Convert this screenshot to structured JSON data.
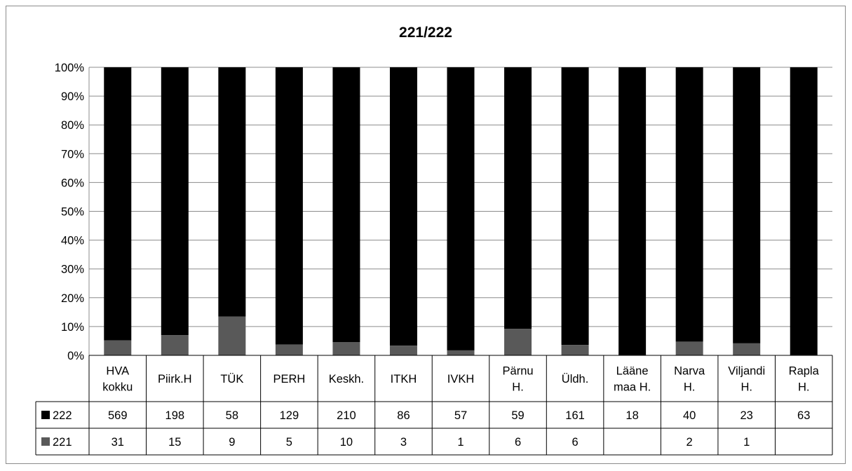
{
  "chart_data": {
    "type": "bar",
    "stacking": "percent",
    "title": "221/222",
    "categories": [
      [
        "HVA",
        "kokku"
      ],
      [
        "Piirk.H"
      ],
      [
        "TÜK"
      ],
      [
        "PERH"
      ],
      [
        "Keskh."
      ],
      [
        "ITKH"
      ],
      [
        "IVKH"
      ],
      [
        "Pärnu",
        "H."
      ],
      [
        "Üldh."
      ],
      [
        "Lääne",
        "maa H."
      ],
      [
        "Narva",
        "H."
      ],
      [
        "Viljandi",
        "H."
      ],
      [
        "Rapla",
        "H."
      ]
    ],
    "series": [
      {
        "name": "222",
        "color": "#000000",
        "values": [
          569,
          198,
          58,
          129,
          210,
          86,
          57,
          59,
          161,
          18,
          40,
          23,
          63
        ]
      },
      {
        "name": "221",
        "color": "#595959",
        "values": [
          31,
          15,
          9,
          5,
          10,
          3,
          1,
          6,
          6,
          null,
          2,
          1,
          null
        ]
      }
    ],
    "y_ticks": [
      "0%",
      "10%",
      "20%",
      "30%",
      "40%",
      "50%",
      "60%",
      "70%",
      "80%",
      "90%",
      "100%"
    ],
    "ylim": [
      0,
      100
    ],
    "grid": true,
    "legend": "data-table-left"
  }
}
